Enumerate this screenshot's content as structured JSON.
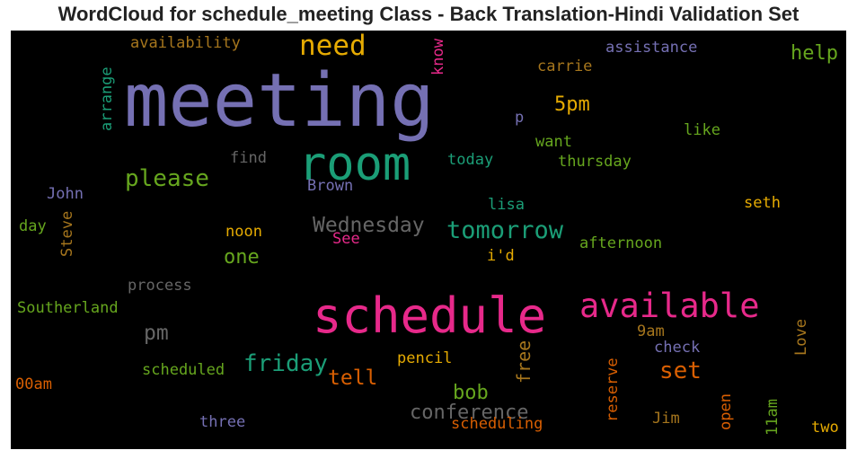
{
  "chart_data": {
    "type": "wordcloud",
    "title": "WordCloud for schedule_meeting Class - Back Translation-Hindi Validation Set",
    "background": "#000000",
    "words": [
      {
        "text": "meeting",
        "color": "#7570b3"
      },
      {
        "text": "schedule",
        "color": "#e7298a"
      },
      {
        "text": "room",
        "color": "#1b9e77"
      },
      {
        "text": "available",
        "color": "#e7298a"
      },
      {
        "text": "need",
        "color": "#e6ab02"
      },
      {
        "text": "tomorrow",
        "color": "#1b9e77"
      },
      {
        "text": "please",
        "color": "#66a61e"
      },
      {
        "text": "friday",
        "color": "#1b9e77"
      },
      {
        "text": "Wednesday",
        "color": "#666666"
      },
      {
        "text": "conference",
        "color": "#666666"
      },
      {
        "text": "set",
        "color": "#d95f02"
      },
      {
        "text": "help",
        "color": "#66a61e"
      },
      {
        "text": "5pm",
        "color": "#e6ab02"
      },
      {
        "text": "one",
        "color": "#66a61e"
      },
      {
        "text": "bob",
        "color": "#66a61e"
      },
      {
        "text": "tell",
        "color": "#d95f02"
      },
      {
        "text": "pm",
        "color": "#666666"
      },
      {
        "text": "availability",
        "color": "#a6761d"
      },
      {
        "text": "assistance",
        "color": "#7570b3"
      },
      {
        "text": "carrie",
        "color": "#a6761d"
      },
      {
        "text": "know",
        "color": "#e7298a"
      },
      {
        "text": "arrange",
        "color": "#1b9e77"
      },
      {
        "text": "p",
        "color": "#7570b3"
      },
      {
        "text": "want",
        "color": "#66a61e"
      },
      {
        "text": "like",
        "color": "#66a61e"
      },
      {
        "text": "find",
        "color": "#666666"
      },
      {
        "text": "today",
        "color": "#1b9e77"
      },
      {
        "text": "thursday",
        "color": "#66a61e"
      },
      {
        "text": "John",
        "color": "#7570b3"
      },
      {
        "text": "Brown",
        "color": "#7570b3"
      },
      {
        "text": "lisa",
        "color": "#1b9e77"
      },
      {
        "text": "seth",
        "color": "#e6ab02"
      },
      {
        "text": "day",
        "color": "#66a61e"
      },
      {
        "text": "Steve",
        "color": "#a6761d"
      },
      {
        "text": "noon",
        "color": "#e6ab02"
      },
      {
        "text": "See",
        "color": "#e7298a"
      },
      {
        "text": "afternoon",
        "color": "#66a61e"
      },
      {
        "text": "i'd",
        "color": "#e6ab02"
      },
      {
        "text": "process",
        "color": "#666666"
      },
      {
        "text": "Southerland",
        "color": "#66a61e"
      },
      {
        "text": "free",
        "color": "#a6761d"
      },
      {
        "text": "Love",
        "color": "#a6761d"
      },
      {
        "text": "9am",
        "color": "#a6761d"
      },
      {
        "text": "check",
        "color": "#7570b3"
      },
      {
        "text": "scheduled",
        "color": "#66a61e"
      },
      {
        "text": "pencil",
        "color": "#e6ab02"
      },
      {
        "text": "reserve",
        "color": "#d95f02"
      },
      {
        "text": "00am",
        "color": "#d95f02"
      },
      {
        "text": "open",
        "color": "#d95f02"
      },
      {
        "text": "11am",
        "color": "#66a61e"
      },
      {
        "text": "three",
        "color": "#7570b3"
      },
      {
        "text": "scheduling",
        "color": "#d95f02"
      },
      {
        "text": "Jim",
        "color": "#a6761d"
      },
      {
        "text": "two",
        "color": "#e6ab02"
      }
    ]
  }
}
